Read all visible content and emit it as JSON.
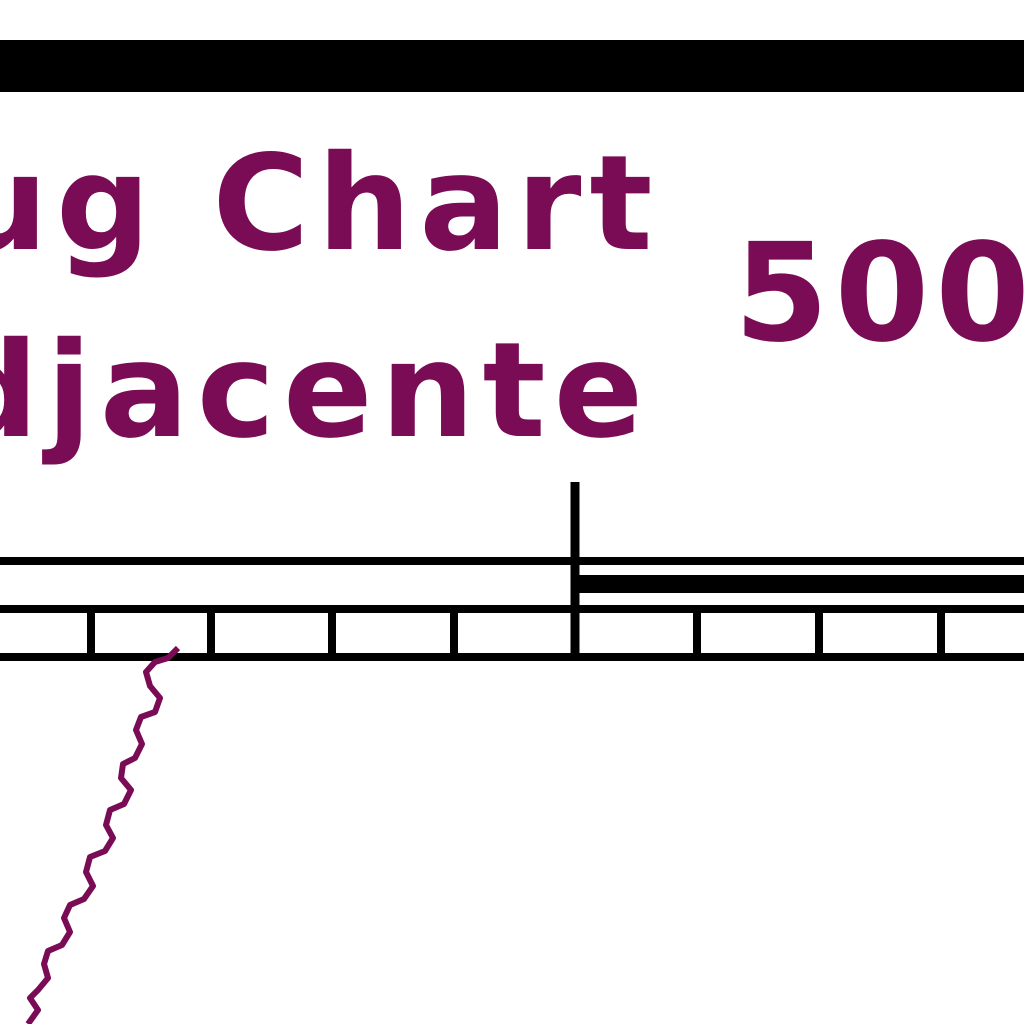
{
  "chart_label": {
    "line1": "ug Chart",
    "line2": "djacente"
  },
  "scale": {
    "number": "500"
  },
  "colors": {
    "label": "#7a0c55",
    "bar": "#000000",
    "background": "#ffffff"
  }
}
